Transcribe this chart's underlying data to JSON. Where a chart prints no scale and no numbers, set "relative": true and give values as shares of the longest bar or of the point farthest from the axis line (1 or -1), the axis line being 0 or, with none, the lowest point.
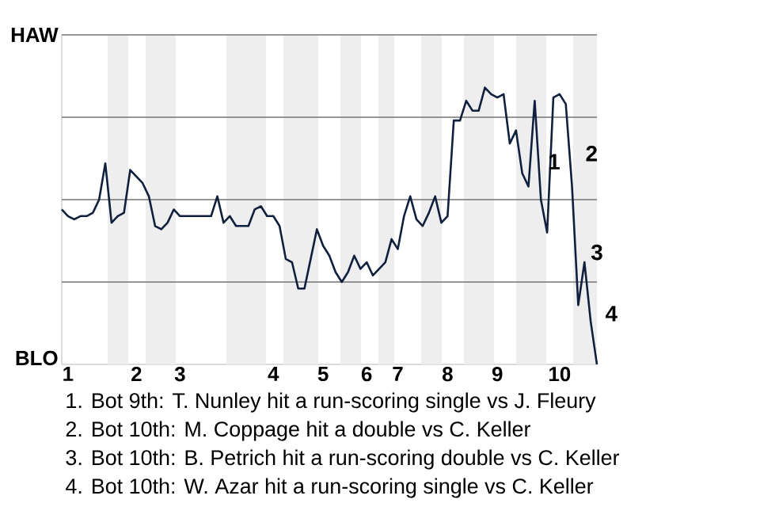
{
  "chart_data": {
    "type": "line",
    "relative": true,
    "categories": [
      null,
      "1",
      null,
      null,
      null,
      null,
      null,
      null,
      null,
      null,
      null,
      null,
      "2",
      null,
      null,
      null,
      null,
      null,
      null,
      "3",
      null,
      null,
      null,
      null,
      null,
      null,
      null,
      null,
      null,
      null,
      null,
      null,
      null,
      null,
      "4",
      null,
      null,
      null,
      null,
      null,
      null,
      null,
      "5",
      null,
      null,
      null,
      null,
      null,
      null,
      "6",
      null,
      null,
      null,
      null,
      "7",
      null,
      null,
      null,
      null,
      null,
      null,
      null,
      "8",
      null,
      null,
      null,
      null,
      null,
      null,
      null,
      "9",
      null,
      null,
      null,
      null,
      null,
      null,
      null,
      null,
      null,
      "10",
      null,
      null,
      null,
      null,
      null,
      null
    ],
    "series": [
      {
        "color": "#0f1f3d",
        "values": [
          -0.06,
          -0.1,
          -0.12,
          -0.1,
          -0.1,
          -0.08,
          0,
          0.22,
          -0.14,
          -0.1,
          -0.08,
          0.18,
          0.14,
          0.1,
          0.02,
          -0.16,
          -0.18,
          -0.14,
          -0.06,
          -0.1,
          -0.1,
          -0.1,
          -0.1,
          -0.1,
          -0.1,
          0.02,
          -0.14,
          -0.1,
          -0.16,
          -0.16,
          -0.16,
          -0.06,
          -0.04,
          -0.1,
          -0.1,
          -0.16,
          -0.36,
          -0.38,
          -0.54,
          -0.54,
          -0.36,
          -0.18,
          -0.28,
          -0.34,
          -0.44,
          -0.5,
          -0.44,
          -0.34,
          -0.42,
          -0.38,
          -0.46,
          -0.42,
          -0.38,
          -0.24,
          -0.3,
          -0.1,
          0.02,
          -0.12,
          -0.16,
          -0.08,
          0.02,
          -0.14,
          -0.1,
          0.48,
          0.48,
          0.6,
          0.54,
          0.54,
          0.68,
          0.64,
          0.62,
          0.64,
          0.34,
          0.42,
          0.16,
          0.08,
          0.6,
          0,
          -0.2,
          0.62,
          0.64,
          0.58,
          0.08,
          -0.64,
          -0.38,
          -0.74,
          -1
        ]
      }
    ],
    "grid": "y",
    "annotations": [
      "HAW",
      "BLO",
      "1",
      "2",
      "3",
      "4",
      "1. Bot 9th: T. Nunley hit a run-scoring single vs J. Fleury",
      "2. Bot 10th: M. Coppage hit a double vs C. Keller",
      "3. Bot 10th: B. Petrich hit a run-scoring double vs C. Keller",
      "4. Bot 10th: W. Azar hit a run-scoring single vs C. Keller"
    ]
  }
}
